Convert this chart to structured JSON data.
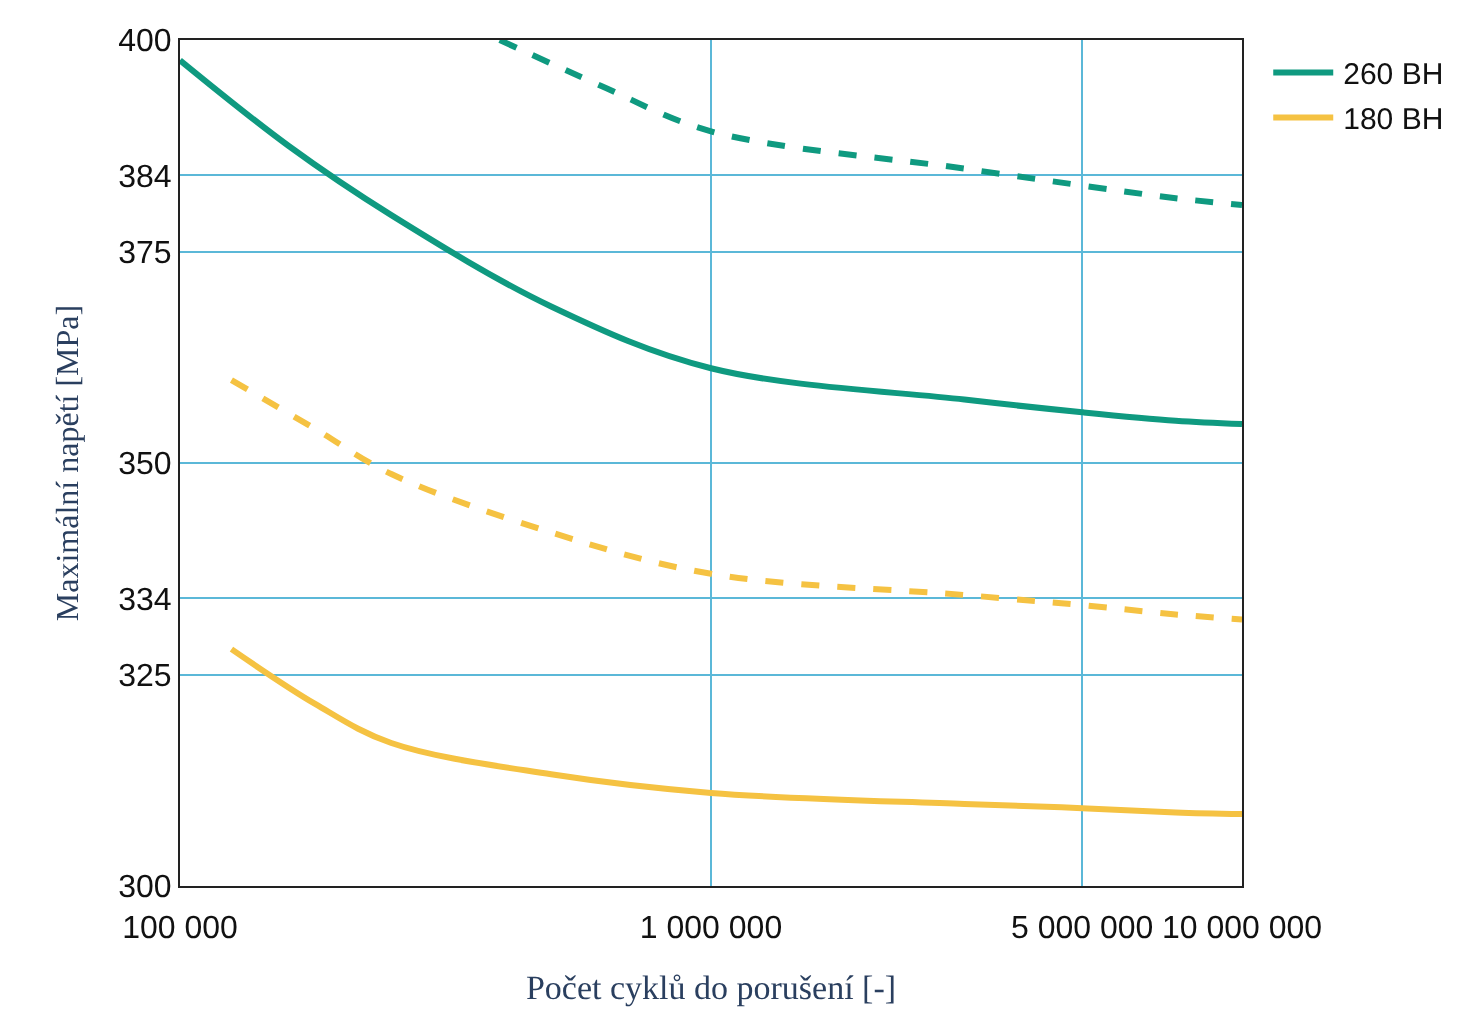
{
  "chart_data": {
    "type": "line",
    "xlabel": "Počet cyklů do porušení [-]",
    "ylabel": "Maximální napětí [MPa]",
    "xlim": [
      100000,
      10000000
    ],
    "xticks": [
      {
        "value": 100000,
        "label": "100 000"
      },
      {
        "value": 1000000,
        "label": "1 000 000"
      },
      {
        "value": 5000000,
        "label": "5 000 000"
      },
      {
        "value": 10000000,
        "label": "10 000 000"
      }
    ],
    "ylim": [
      300,
      400
    ],
    "yticks": [
      300,
      325,
      334,
      350,
      375,
      384,
      400
    ],
    "grid": true,
    "log": "x",
    "legend": "top right",
    "marker": "none",
    "series": [
      {
        "name": "260 BH",
        "color": "#0f9a80",
        "line_style": "solid",
        "x": [
          100000,
          160000,
          250000,
          500000,
          1000000,
          3000000,
          5000000,
          7500000,
          10000000
        ],
        "values": [
          397.6,
          387.5,
          379.3,
          368.5,
          361.2,
          357.5,
          356,
          355,
          354.6
        ]
      },
      {
        "color": "#0f9a80",
        "line_style": "dashed",
        "x": [
          400000,
          620000,
          1000000,
          3000000,
          5000000,
          7500000,
          10000000
        ],
        "values": [
          400,
          394.6,
          389.2,
          384.8,
          382.8,
          381.3,
          380.5
        ]
      },
      {
        "name": "180 BH",
        "color": "#f5c242",
        "line_style": "solid",
        "x": [
          125000,
          180000,
          250000,
          500000,
          1000000,
          3000000,
          5000000,
          7500000,
          10000000
        ],
        "values": [
          328,
          321.5,
          316.9,
          313.2,
          311,
          309.7,
          309.2,
          308.7,
          308.5
        ]
      },
      {
        "color": "#f5c242",
        "line_style": "dashed",
        "x": [
          125000,
          180000,
          250000,
          500000,
          1000000,
          3000000,
          5000000,
          7500000,
          10000000
        ],
        "values": [
          359.8,
          354,
          348.7,
          341.8,
          336.9,
          334.4,
          333.2,
          332.1,
          331.5
        ]
      }
    ]
  }
}
